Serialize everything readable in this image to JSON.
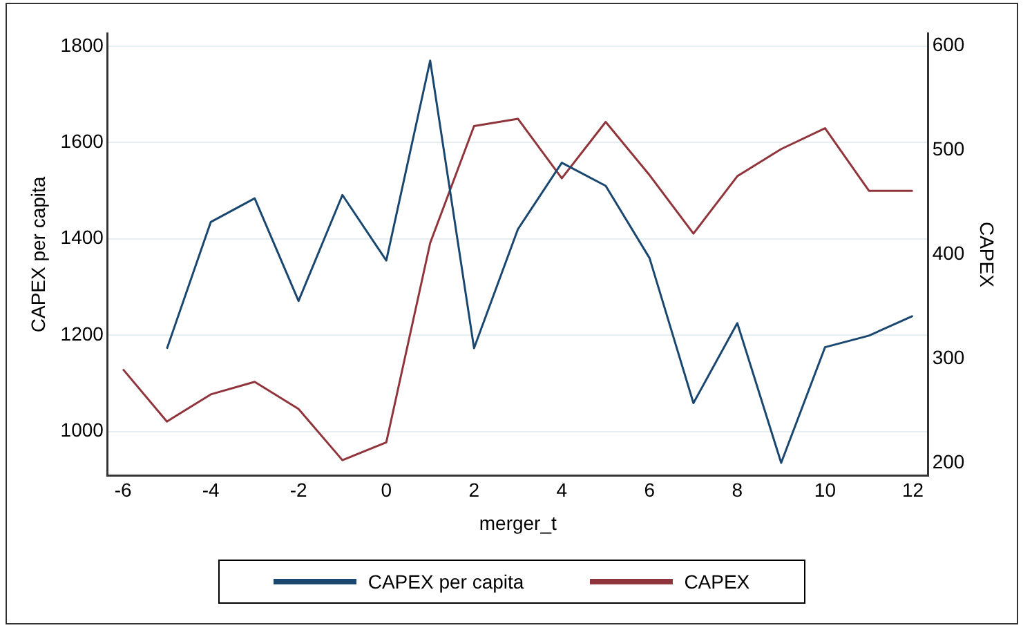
{
  "chart_data": {
    "type": "line",
    "xlabel": "merger_t",
    "ylabel": "CAPEX per capita",
    "y2label": "CAPEX",
    "x": [
      -6,
      -5,
      -4,
      -3,
      -2,
      -1,
      0,
      1,
      2,
      3,
      4,
      5,
      6,
      7,
      8,
      9,
      10,
      11,
      12
    ],
    "series": [
      {
        "name": "CAPEX per capita",
        "color": "#1a476f",
        "values": [
          null,
          1172,
          1435,
          1484,
          1271,
          1491,
          1355,
          1770,
          1173,
          1420,
          1558,
          1510,
          1360,
          1059,
          1225,
          935,
          1175,
          1199,
          1240
        ]
      },
      {
        "name": "CAPEX",
        "color": "#90353b",
        "axis": "y2",
        "values": [
          290,
          240,
          266,
          278,
          252,
          203,
          220,
          411,
          523,
          530,
          473,
          527,
          476,
          420,
          475,
          501,
          521,
          461,
          461
        ]
      }
    ],
    "xlim": [
      -6.35,
      12.35
    ],
    "xticks": [
      -6,
      -4,
      -2,
      0,
      2,
      4,
      6,
      8,
      10,
      12
    ],
    "ylim": [
      908,
      1827
    ],
    "yticks": [
      1000,
      1200,
      1400,
      1600,
      1800
    ],
    "y2lim": [
      188,
      612
    ],
    "y2ticks": [
      200,
      300,
      400,
      500,
      600
    ],
    "grid": "y",
    "legend": "bottom",
    "marker": "none",
    "line_style": "solid"
  }
}
